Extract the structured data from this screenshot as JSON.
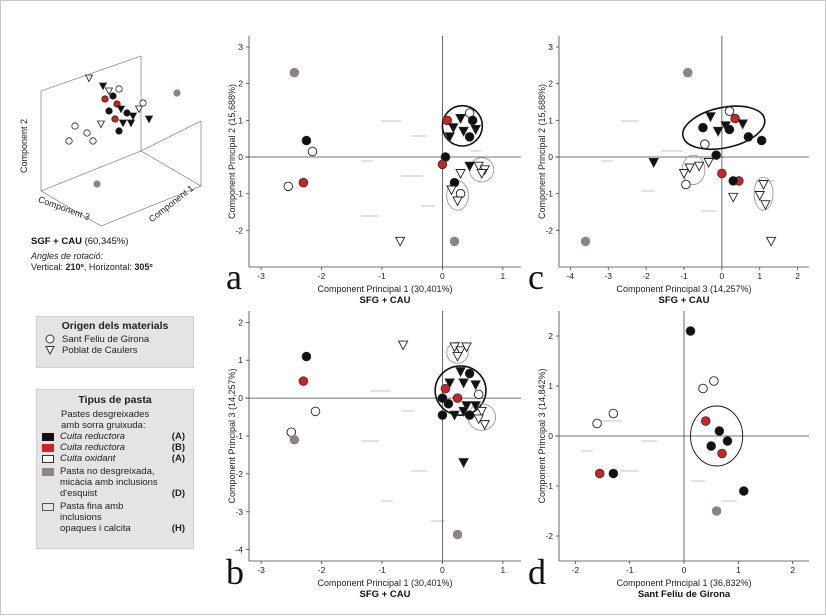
{
  "pca3d": {
    "axis_labels": {
      "z": "Component 2",
      "x": "Component 3",
      "y": "Component 1"
    },
    "title": "SGF + CAU",
    "variance": "(60,345%)",
    "angles_label": "Angles de rotació:",
    "vertical_label": "Vertical:",
    "vertical_value": "210º",
    "horizontal_label": "Horizontal:",
    "horizontal_value": "305º"
  },
  "legend_origin": {
    "title": "Origen dels materials",
    "items": [
      {
        "symbol": "circle",
        "label": "Sant Feliu de Girona"
      },
      {
        "symbol": "triangle",
        "label": "Poblat de Caulers"
      }
    ]
  },
  "legend_paste": {
    "title": "Tipus de pasta",
    "intro_line1": "Pastes desgreixades",
    "intro_line2": "amb sorra gruixuda:",
    "items": [
      {
        "label": "Cuita reductora",
        "code": "(A)",
        "color": "#111111",
        "border": "#111111",
        "italic": true
      },
      {
        "label": "Cuita reductora",
        "code": "(B)",
        "color": "#d42020",
        "border": "#d42020",
        "italic": true
      },
      {
        "label": "Cuita oxidant",
        "code": "(A)",
        "color": "#ffffff",
        "border": "#333333",
        "italic": true
      }
    ],
    "gray_line1": "Pasta no desgreixada,",
    "gray_line2": "micàcia amb inclusions",
    "gray_line3": "d'esquist",
    "gray_code": "(D)",
    "gray_color": "#8a8580",
    "fine_line1": "Pasta fina amb inclusions",
    "fine_line2": "opaques i calcita",
    "fine_code": "(H)",
    "fine_color": "#e6e6e6"
  },
  "colors": {
    "A": "#111111",
    "B": "#d42020",
    "O": "#ffffff",
    "D": "#8a8580",
    "H": "#e6e6e6",
    "stroke": "#333333"
  },
  "chart_data": [
    {
      "id": "a",
      "type": "scatter",
      "letter": "a",
      "xlabel": "Component Principal 1 (30,401%)",
      "xsublabel": "SFG + CAU",
      "ylabel": "Component Principal 2 (15,688%)",
      "xlim": [
        -3.2,
        1.3
      ],
      "ylim": [
        -3,
        3.3
      ],
      "xticks": [
        -3,
        -2,
        -1,
        0,
        1
      ],
      "yticks": [
        -2,
        -1,
        0,
        1,
        2,
        3
      ],
      "ellipses": [
        {
          "cx": 0.33,
          "cy": 0.85,
          "rx": 0.33,
          "ry": 0.55,
          "heavy": true
        },
        {
          "cx": 0.25,
          "cy": -1.05,
          "rx": 0.18,
          "ry": 0.4,
          "heavy": false
        },
        {
          "cx": 0.65,
          "cy": -0.35,
          "rx": 0.2,
          "ry": 0.33,
          "heavy": false
        }
      ],
      "points": [
        {
          "x": -2.45,
          "y": 2.3,
          "shape": "circle",
          "type": "D"
        },
        {
          "x": -2.25,
          "y": 0.45,
          "shape": "circle",
          "type": "A"
        },
        {
          "x": -2.15,
          "y": 0.15,
          "shape": "circle",
          "type": "O"
        },
        {
          "x": -2.55,
          "y": -0.8,
          "shape": "circle",
          "type": "O"
        },
        {
          "x": -2.3,
          "y": -0.7,
          "shape": "circle",
          "type": "B"
        },
        {
          "x": 0.2,
          "y": -2.3,
          "shape": "circle",
          "type": "D"
        },
        {
          "x": -0.7,
          "y": -2.3,
          "shape": "triangle",
          "type": "O"
        },
        {
          "x": 0.45,
          "y": 1.2,
          "shape": "circle",
          "type": "O"
        },
        {
          "x": 0.08,
          "y": 1.0,
          "shape": "circle",
          "type": "B"
        },
        {
          "x": 0.3,
          "y": 1.05,
          "shape": "triangle",
          "type": "A"
        },
        {
          "x": 0.5,
          "y": 1.0,
          "shape": "circle",
          "type": "A"
        },
        {
          "x": 0.18,
          "y": 0.8,
          "shape": "triangle",
          "type": "A"
        },
        {
          "x": 0.35,
          "y": 0.7,
          "shape": "triangle",
          "type": "A"
        },
        {
          "x": 0.55,
          "y": 0.75,
          "shape": "triangle",
          "type": "A"
        },
        {
          "x": 0.12,
          "y": 0.55,
          "shape": "triangle",
          "type": "A"
        },
        {
          "x": 0.45,
          "y": 0.55,
          "shape": "circle",
          "type": "A"
        },
        {
          "x": 0.05,
          "y": 0.0,
          "shape": "circle",
          "type": "A"
        },
        {
          "x": 0.0,
          "y": -0.2,
          "shape": "circle",
          "type": "B"
        },
        {
          "x": 0.45,
          "y": -0.25,
          "shape": "triangle",
          "type": "A"
        },
        {
          "x": 0.3,
          "y": -0.45,
          "shape": "triangle",
          "type": "O"
        },
        {
          "x": 0.2,
          "y": -0.7,
          "shape": "circle",
          "type": "A"
        },
        {
          "x": 0.15,
          "y": -0.9,
          "shape": "triangle",
          "type": "O"
        },
        {
          "x": 0.3,
          "y": -1.0,
          "shape": "circle",
          "type": "O"
        },
        {
          "x": 0.25,
          "y": -1.2,
          "shape": "triangle",
          "type": "O"
        },
        {
          "x": 0.6,
          "y": -0.25,
          "shape": "triangle",
          "type": "O"
        },
        {
          "x": 0.7,
          "y": -0.35,
          "shape": "triangle",
          "type": "O"
        },
        {
          "x": 0.65,
          "y": -0.45,
          "shape": "triangle",
          "type": "O"
        }
      ]
    },
    {
      "id": "c",
      "type": "scatter",
      "letter": "c",
      "xlabel": "Component Principal 3 (14,257%)",
      "xsublabel": "SFG + CAU",
      "ylabel": "Component Principal 2 (15,688%)",
      "xlim": [
        -4.3,
        2.3
      ],
      "ylim": [
        -3,
        3.3
      ],
      "xticks": [
        -4,
        -3,
        -2,
        -1,
        0,
        1,
        2
      ],
      "yticks": [
        -2,
        -1,
        0,
        1,
        2,
        3
      ],
      "ellipses": [
        {
          "cx": 0.05,
          "cy": 0.8,
          "rx": 1.1,
          "ry": 0.55,
          "heavy": true,
          "rot": 12
        },
        {
          "cx": -0.75,
          "cy": -0.35,
          "rx": 0.3,
          "ry": 0.4,
          "heavy": false
        },
        {
          "cx": 1.1,
          "cy": -1.0,
          "rx": 0.25,
          "ry": 0.45,
          "heavy": false
        }
      ],
      "points": [
        {
          "x": -0.9,
          "y": 2.3,
          "shape": "circle",
          "type": "D"
        },
        {
          "x": -3.6,
          "y": -2.3,
          "shape": "circle",
          "type": "D"
        },
        {
          "x": -1.8,
          "y": -0.15,
          "shape": "triangle",
          "type": "A"
        },
        {
          "x": 0.2,
          "y": 1.25,
          "shape": "circle",
          "type": "O"
        },
        {
          "x": -0.3,
          "y": 1.1,
          "shape": "triangle",
          "type": "A"
        },
        {
          "x": -0.5,
          "y": 0.8,
          "shape": "circle",
          "type": "A"
        },
        {
          "x": 0.35,
          "y": 1.05,
          "shape": "circle",
          "type": "B"
        },
        {
          "x": 0.55,
          "y": 0.9,
          "shape": "triangle",
          "type": "A"
        },
        {
          "x": 0.1,
          "y": 0.85,
          "shape": "triangle",
          "type": "A"
        },
        {
          "x": -0.1,
          "y": 0.7,
          "shape": "triangle",
          "type": "A"
        },
        {
          "x": 0.2,
          "y": 0.75,
          "shape": "circle",
          "type": "A"
        },
        {
          "x": 0.7,
          "y": 0.55,
          "shape": "circle",
          "type": "A"
        },
        {
          "x": 1.05,
          "y": 0.45,
          "shape": "circle",
          "type": "A"
        },
        {
          "x": -0.45,
          "y": 0.35,
          "shape": "circle",
          "type": "O"
        },
        {
          "x": -0.15,
          "y": 0.05,
          "shape": "circle",
          "type": "A"
        },
        {
          "x": -0.35,
          "y": -0.15,
          "shape": "triangle",
          "type": "O"
        },
        {
          "x": -0.6,
          "y": -0.25,
          "shape": "triangle",
          "type": "O"
        },
        {
          "x": -0.85,
          "y": -0.3,
          "shape": "triangle",
          "type": "O"
        },
        {
          "x": -1.0,
          "y": -0.45,
          "shape": "triangle",
          "type": "O"
        },
        {
          "x": -0.95,
          "y": -0.75,
          "shape": "circle",
          "type": "O"
        },
        {
          "x": 0.0,
          "y": -0.45,
          "shape": "circle",
          "type": "B"
        },
        {
          "x": 0.45,
          "y": -0.65,
          "shape": "circle",
          "type": "B"
        },
        {
          "x": 0.3,
          "y": -0.65,
          "shape": "circle",
          "type": "A"
        },
        {
          "x": 0.3,
          "y": -1.1,
          "shape": "triangle",
          "type": "O"
        },
        {
          "x": 1.1,
          "y": -0.75,
          "shape": "triangle",
          "type": "O"
        },
        {
          "x": 1.0,
          "y": -1.05,
          "shape": "triangle",
          "type": "O"
        },
        {
          "x": 1.15,
          "y": -1.3,
          "shape": "triangle",
          "type": "O"
        },
        {
          "x": 1.3,
          "y": -2.3,
          "shape": "triangle",
          "type": "O"
        }
      ]
    },
    {
      "id": "b",
      "type": "scatter",
      "letter": "b",
      "xlabel": "Component Principal 1 (30,401%)",
      "xsublabel": "SFG + CAU",
      "ylabel": "Component Principal 3 (14,257%)",
      "xlim": [
        -3.2,
        1.3
      ],
      "ylim": [
        -4.3,
        2.3
      ],
      "xticks": [
        -3,
        -2,
        -1,
        0,
        1
      ],
      "yticks": [
        -4,
        -3,
        -2,
        -1,
        0,
        1,
        2
      ],
      "ellipses": [
        {
          "cx": 0.3,
          "cy": 0.2,
          "rx": 0.42,
          "ry": 0.65,
          "heavy": true
        },
        {
          "cx": 0.25,
          "cy": 1.2,
          "rx": 0.18,
          "ry": 0.28,
          "heavy": false
        },
        {
          "cx": 0.65,
          "cy": -0.5,
          "rx": 0.23,
          "ry": 0.35,
          "heavy": false
        }
      ],
      "points": [
        {
          "x": -2.25,
          "y": 1.1,
          "shape": "circle",
          "type": "A"
        },
        {
          "x": -2.3,
          "y": 0.45,
          "shape": "circle",
          "type": "B"
        },
        {
          "x": -2.1,
          "y": -0.35,
          "shape": "circle",
          "type": "O"
        },
        {
          "x": -2.5,
          "y": -0.9,
          "shape": "circle",
          "type": "O"
        },
        {
          "x": -2.45,
          "y": -1.1,
          "shape": "circle",
          "type": "D"
        },
        {
          "x": -0.65,
          "y": 1.4,
          "shape": "triangle",
          "type": "O"
        },
        {
          "x": 0.25,
          "y": -3.6,
          "shape": "circle",
          "type": "D"
        },
        {
          "x": 0.35,
          "y": -1.7,
          "shape": "triangle",
          "type": "A"
        },
        {
          "x": 0.2,
          "y": 1.35,
          "shape": "triangle",
          "type": "O"
        },
        {
          "x": 0.3,
          "y": 1.25,
          "shape": "triangle",
          "type": "O"
        },
        {
          "x": 0.4,
          "y": 1.35,
          "shape": "triangle",
          "type": "O"
        },
        {
          "x": 0.25,
          "y": 1.1,
          "shape": "triangle",
          "type": "O"
        },
        {
          "x": 0.3,
          "y": 0.7,
          "shape": "triangle",
          "type": "A"
        },
        {
          "x": 0.45,
          "y": 0.65,
          "shape": "circle",
          "type": "A"
        },
        {
          "x": 0.12,
          "y": 0.4,
          "shape": "triangle",
          "type": "A"
        },
        {
          "x": 0.35,
          "y": 0.4,
          "shape": "triangle",
          "type": "A"
        },
        {
          "x": 0.55,
          "y": 0.35,
          "shape": "triangle",
          "type": "A"
        },
        {
          "x": 0.05,
          "y": 0.25,
          "shape": "circle",
          "type": "B"
        },
        {
          "x": 0.6,
          "y": 0.1,
          "shape": "circle",
          "type": "O"
        },
        {
          "x": 0.0,
          "y": 0.0,
          "shape": "circle",
          "type": "A"
        },
        {
          "x": 0.25,
          "y": 0.0,
          "shape": "circle",
          "type": "B"
        },
        {
          "x": 0.1,
          "y": -0.15,
          "shape": "circle",
          "type": "A"
        },
        {
          "x": 0.4,
          "y": -0.2,
          "shape": "triangle",
          "type": "A"
        },
        {
          "x": 0.55,
          "y": -0.2,
          "shape": "triangle",
          "type": "A"
        },
        {
          "x": 0.0,
          "y": -0.45,
          "shape": "circle",
          "type": "A"
        },
        {
          "x": 0.2,
          "y": -0.45,
          "shape": "triangle",
          "type": "A"
        },
        {
          "x": 0.35,
          "y": -0.35,
          "shape": "triangle",
          "type": "A"
        },
        {
          "x": 0.65,
          "y": -0.35,
          "shape": "triangle",
          "type": "O"
        },
        {
          "x": 0.6,
          "y": -0.55,
          "shape": "triangle",
          "type": "O"
        },
        {
          "x": 0.7,
          "y": -0.7,
          "shape": "triangle",
          "type": "O"
        },
        {
          "x": 0.45,
          "y": -0.45,
          "shape": "circle",
          "type": "A"
        }
      ]
    },
    {
      "id": "d",
      "type": "scatter",
      "letter": "d",
      "xlabel": "Component Principal 1 (36,832%)",
      "xsublabel": "Sant Feliu de Girona",
      "ylabel": "Component Principal 3 (14,842%)",
      "xlim": [
        -2.3,
        2.3
      ],
      "ylim": [
        -2.5,
        2.5
      ],
      "xticks": [
        -2,
        -1,
        0,
        1,
        2
      ],
      "yticks": [
        -2,
        -1,
        0,
        1,
        2
      ],
      "ellipses": [
        {
          "cx": 0.6,
          "cy": 0.0,
          "rx": 0.48,
          "ry": 0.6,
          "heavy": false,
          "dark": true
        }
      ],
      "points": [
        {
          "x": 0.12,
          "y": 2.1,
          "shape": "circle",
          "type": "A"
        },
        {
          "x": 0.35,
          "y": 0.95,
          "shape": "circle",
          "type": "O"
        },
        {
          "x": 0.55,
          "y": 1.1,
          "shape": "circle",
          "type": "O"
        },
        {
          "x": -1.3,
          "y": 0.45,
          "shape": "circle",
          "type": "O"
        },
        {
          "x": -1.6,
          "y": 0.25,
          "shape": "circle",
          "type": "O"
        },
        {
          "x": 0.4,
          "y": 0.3,
          "shape": "circle",
          "type": "B"
        },
        {
          "x": 0.65,
          "y": 0.1,
          "shape": "circle",
          "type": "A"
        },
        {
          "x": 0.8,
          "y": -0.1,
          "shape": "circle",
          "type": "A"
        },
        {
          "x": 0.5,
          "y": -0.2,
          "shape": "circle",
          "type": "A"
        },
        {
          "x": 0.7,
          "y": -0.35,
          "shape": "circle",
          "type": "B"
        },
        {
          "x": -1.55,
          "y": -0.75,
          "shape": "circle",
          "type": "B"
        },
        {
          "x": -1.3,
          "y": -0.75,
          "shape": "circle",
          "type": "A"
        },
        {
          "x": 1.1,
          "y": -1.1,
          "shape": "circle",
          "type": "A"
        },
        {
          "x": 0.6,
          "y": -1.5,
          "shape": "circle",
          "type": "D"
        }
      ]
    }
  ]
}
